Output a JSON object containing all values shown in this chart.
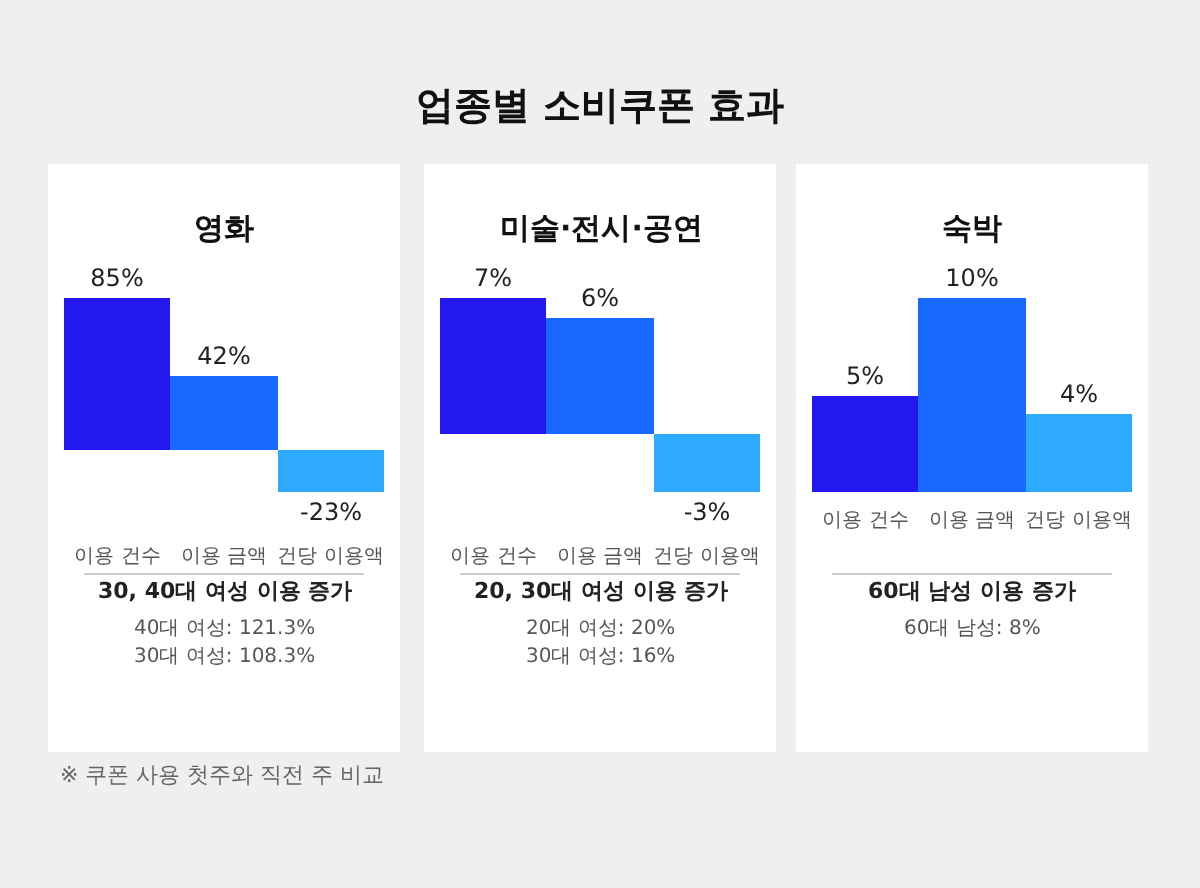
{
  "chart_data": [
    {
      "type": "other",
      "title": "업종별 소비쿠폰 효과",
      "annotations": [
        "※ 쿠폰 사용 첫주와 직전 주 비교"
      ]
    },
    {
      "type": "bar",
      "title": "영화",
      "categories": [
        "이용 건수",
        "이용 금액",
        "건당 이용액"
      ],
      "values": [
        85,
        42,
        -23
      ],
      "value_labels": [
        "85%",
        "42%",
        "-23%"
      ],
      "colors": [
        "#2318f0",
        "#1769ff",
        "#2eaaff"
      ],
      "annotations": [
        "30, 40대 여성 이용 증가",
        "40대 여성: 121.3%",
        "30대 여성: 108.3%"
      ]
    },
    {
      "type": "bar",
      "title": "미술·전시·공연",
      "categories": [
        "이용 건수",
        "이용 금액",
        "건당 이용액"
      ],
      "values": [
        7,
        6,
        -3
      ],
      "value_labels": [
        "7%",
        "6%",
        "-3%"
      ],
      "colors": [
        "#2318f0",
        "#1769ff",
        "#2eaaff"
      ],
      "annotations": [
        "20, 30대 여성 이용 증가",
        "20대 여성: 20%",
        "30대 여성: 16%"
      ]
    },
    {
      "type": "bar",
      "title": "숙박",
      "categories": [
        "이용 건수",
        "이용 금액",
        "건당 이용액"
      ],
      "values": [
        5,
        10,
        4
      ],
      "value_labels": [
        "5%",
        "10%",
        "4%"
      ],
      "colors": [
        "#2318f0",
        "#1769ff",
        "#2eaaff"
      ],
      "annotations": [
        "60대 남성 이용 증가",
        "60대 남성: 8%"
      ]
    }
  ]
}
